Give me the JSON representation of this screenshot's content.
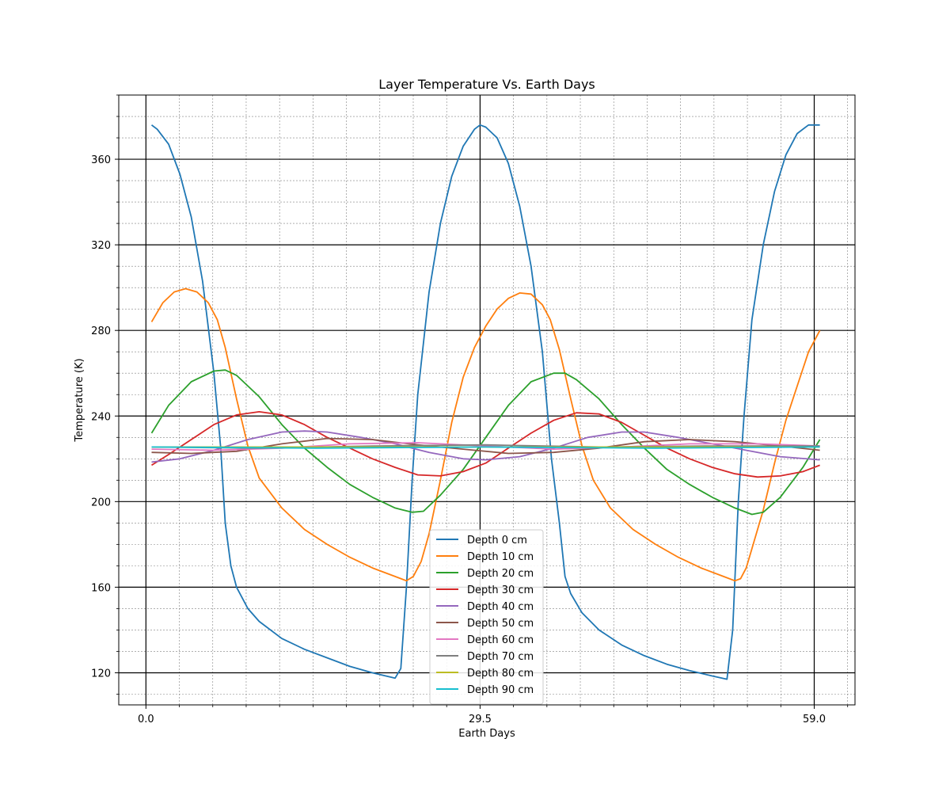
{
  "chart_data": {
    "type": "line",
    "title": "Layer Temperature Vs. Earth Days",
    "xlabel": "Earth Days",
    "ylabel": "Temperature (K)",
    "xlim": [
      -2.4,
      62.6
    ],
    "ylim": [
      105,
      390
    ],
    "x_ticks": [
      0.0,
      29.5,
      59.0
    ],
    "x_tick_labels": [
      "0.0",
      "29.5",
      "59.0"
    ],
    "y_ticks": [
      120,
      160,
      200,
      240,
      280,
      320,
      360
    ],
    "y_tick_labels": [
      "120",
      "160",
      "200",
      "240",
      "280",
      "320",
      "360"
    ],
    "grid": true,
    "minor_grid": true,
    "legend_position": "lower-center",
    "series": [
      {
        "name": "Depth 0 cm",
        "color": "#1f77b4",
        "points": [
          [
            0.5,
            376
          ],
          [
            1,
            374
          ],
          [
            2,
            367
          ],
          [
            3,
            353
          ],
          [
            4,
            333
          ],
          [
            5,
            303
          ],
          [
            6,
            260
          ],
          [
            6.6,
            225
          ],
          [
            7.0,
            190
          ],
          [
            7.5,
            170
          ],
          [
            8,
            160
          ],
          [
            9,
            150
          ],
          [
            10,
            144
          ],
          [
            12,
            136
          ],
          [
            14,
            131
          ],
          [
            16,
            127
          ],
          [
            18,
            123
          ],
          [
            20,
            120
          ],
          [
            22,
            117.5
          ],
          [
            22.5,
            122
          ],
          [
            23,
            160
          ],
          [
            23.5,
            210
          ],
          [
            24,
            250
          ],
          [
            25,
            298
          ],
          [
            26,
            330
          ],
          [
            27,
            352
          ],
          [
            28,
            366
          ],
          [
            29,
            374
          ],
          [
            29.5,
            376
          ],
          [
            30,
            375
          ],
          [
            31,
            370
          ],
          [
            32,
            358
          ],
          [
            33,
            338
          ],
          [
            34,
            310
          ],
          [
            35,
            270
          ],
          [
            35.8,
            220
          ],
          [
            36.5,
            190
          ],
          [
            37,
            165
          ],
          [
            37.5,
            157
          ],
          [
            38.5,
            148
          ],
          [
            40,
            140
          ],
          [
            42,
            133
          ],
          [
            44,
            128
          ],
          [
            46,
            124
          ],
          [
            48,
            121
          ],
          [
            50,
            118.5
          ],
          [
            51.3,
            117
          ],
          [
            51.8,
            140
          ],
          [
            52.3,
            200
          ],
          [
            52.8,
            240
          ],
          [
            53.5,
            285
          ],
          [
            54.5,
            320
          ],
          [
            55.5,
            345
          ],
          [
            56.5,
            362
          ],
          [
            57.5,
            372
          ],
          [
            58.5,
            376
          ],
          [
            59.5,
            376
          ]
        ]
      },
      {
        "name": "Depth 10 cm",
        "color": "#ff7f0e",
        "points": [
          [
            0.5,
            284
          ],
          [
            1.5,
            293
          ],
          [
            2.5,
            298
          ],
          [
            3.5,
            299.5
          ],
          [
            4.5,
            298
          ],
          [
            5.5,
            293
          ],
          [
            6.3,
            285
          ],
          [
            7,
            272
          ],
          [
            8,
            248
          ],
          [
            9,
            226
          ],
          [
            10,
            211
          ],
          [
            12,
            197
          ],
          [
            14,
            187
          ],
          [
            16,
            180
          ],
          [
            18,
            174
          ],
          [
            20,
            169
          ],
          [
            22,
            165
          ],
          [
            23,
            163
          ],
          [
            23.6,
            165
          ],
          [
            24.3,
            172
          ],
          [
            25,
            185
          ],
          [
            26,
            210
          ],
          [
            27,
            237
          ],
          [
            28,
            258
          ],
          [
            29,
            272
          ],
          [
            30,
            282
          ],
          [
            31,
            290
          ],
          [
            32,
            295
          ],
          [
            33,
            297.5
          ],
          [
            34,
            297
          ],
          [
            35,
            292
          ],
          [
            35.7,
            285
          ],
          [
            36.5,
            271
          ],
          [
            37.5,
            248
          ],
          [
            38.5,
            226
          ],
          [
            39.5,
            210
          ],
          [
            41,
            197
          ],
          [
            43,
            187
          ],
          [
            45,
            180
          ],
          [
            47,
            174
          ],
          [
            49,
            169
          ],
          [
            51,
            165
          ],
          [
            52,
            163
          ],
          [
            52.5,
            164
          ],
          [
            53,
            169
          ],
          [
            53.5,
            178
          ],
          [
            54.5,
            196
          ],
          [
            55.5,
            218
          ],
          [
            56.5,
            238
          ],
          [
            57.5,
            254
          ],
          [
            58.5,
            270
          ],
          [
            59.5,
            280
          ]
        ]
      },
      {
        "name": "Depth 20 cm",
        "color": "#2ca02c",
        "points": [
          [
            0.5,
            232
          ],
          [
            2,
            245
          ],
          [
            4,
            256
          ],
          [
            6,
            261
          ],
          [
            7,
            261.5
          ],
          [
            8,
            259
          ],
          [
            10,
            249
          ],
          [
            12,
            236
          ],
          [
            14,
            225
          ],
          [
            16,
            216
          ],
          [
            18,
            208
          ],
          [
            20,
            202
          ],
          [
            22,
            197
          ],
          [
            23.5,
            195
          ],
          [
            24.5,
            195.5
          ],
          [
            26,
            203
          ],
          [
            28,
            215
          ],
          [
            30,
            230
          ],
          [
            32,
            245
          ],
          [
            34,
            256
          ],
          [
            36,
            260
          ],
          [
            37,
            260
          ],
          [
            38,
            257
          ],
          [
            40,
            248
          ],
          [
            42,
            236
          ],
          [
            44,
            225
          ],
          [
            46,
            215
          ],
          [
            48,
            208
          ],
          [
            50,
            202
          ],
          [
            52,
            197
          ],
          [
            53.5,
            194
          ],
          [
            54.5,
            195
          ],
          [
            56,
            202
          ],
          [
            58,
            216
          ],
          [
            59.5,
            229
          ]
        ]
      },
      {
        "name": "Depth 30 cm",
        "color": "#d62728",
        "points": [
          [
            0.5,
            217
          ],
          [
            2,
            222
          ],
          [
            4,
            229
          ],
          [
            6,
            236
          ],
          [
            8,
            240.5
          ],
          [
            10,
            242
          ],
          [
            12,
            240.5
          ],
          [
            14,
            236
          ],
          [
            16,
            230
          ],
          [
            18,
            225
          ],
          [
            20,
            220
          ],
          [
            22,
            216
          ],
          [
            24,
            212.5
          ],
          [
            26,
            212
          ],
          [
            28,
            214
          ],
          [
            30,
            218
          ],
          [
            32,
            225
          ],
          [
            34,
            232
          ],
          [
            36,
            238
          ],
          [
            38,
            241.5
          ],
          [
            40,
            241
          ],
          [
            42,
            237
          ],
          [
            44,
            231
          ],
          [
            46,
            225
          ],
          [
            48,
            220
          ],
          [
            50,
            216
          ],
          [
            52,
            213
          ],
          [
            54,
            211.5
          ],
          [
            56,
            212
          ],
          [
            58,
            214
          ],
          [
            59.5,
            217
          ]
        ]
      },
      {
        "name": "Depth 40 cm",
        "color": "#9467bd",
        "points": [
          [
            0.5,
            218.5
          ],
          [
            3,
            220
          ],
          [
            6,
            224
          ],
          [
            9,
            229
          ],
          [
            12,
            232.5
          ],
          [
            14,
            233
          ],
          [
            16,
            232.5
          ],
          [
            19,
            230
          ],
          [
            22,
            227
          ],
          [
            25,
            223
          ],
          [
            28,
            220
          ],
          [
            30,
            219.5
          ],
          [
            33,
            221
          ],
          [
            36,
            225
          ],
          [
            39,
            230
          ],
          [
            42,
            232.5
          ],
          [
            44,
            232.5
          ],
          [
            47,
            230
          ],
          [
            50,
            227
          ],
          [
            53,
            224
          ],
          [
            56,
            221
          ],
          [
            59.5,
            219.5
          ]
        ]
      },
      {
        "name": "Depth 50 cm",
        "color": "#8c564b",
        "points": [
          [
            0.5,
            223
          ],
          [
            4,
            222.5
          ],
          [
            8,
            223.5
          ],
          [
            12,
            227
          ],
          [
            16,
            229.5
          ],
          [
            20,
            229
          ],
          [
            24,
            226.5
          ],
          [
            28,
            224.5
          ],
          [
            32,
            222.5
          ],
          [
            36,
            223
          ],
          [
            40,
            225
          ],
          [
            44,
            228
          ],
          [
            48,
            229
          ],
          [
            52,
            228
          ],
          [
            56,
            226
          ],
          [
            59.5,
            224
          ]
        ]
      },
      {
        "name": "Depth 60 cm",
        "color": "#e377c2",
        "points": [
          [
            0.5,
            224.5
          ],
          [
            6,
            224
          ],
          [
            12,
            225
          ],
          [
            18,
            227
          ],
          [
            24,
            227.5
          ],
          [
            30,
            226
          ],
          [
            36,
            224.5
          ],
          [
            42,
            225.5
          ],
          [
            48,
            227
          ],
          [
            54,
            227
          ],
          [
            59.5,
            226
          ]
        ]
      },
      {
        "name": "Depth 70 cm",
        "color": "#7f7f7f",
        "points": [
          [
            0.5,
            225.5
          ],
          [
            10,
            225
          ],
          [
            20,
            226
          ],
          [
            30,
            226.5
          ],
          [
            40,
            225.5
          ],
          [
            50,
            226
          ],
          [
            59.5,
            226
          ]
        ]
      },
      {
        "name": "Depth 80 cm",
        "color": "#bcbd22",
        "points": [
          [
            0.5,
            225.5
          ],
          [
            15,
            225.5
          ],
          [
            30,
            225.5
          ],
          [
            45,
            225.5
          ],
          [
            59.5,
            225.5
          ]
        ]
      },
      {
        "name": "Depth 90 cm",
        "color": "#17becf",
        "points": [
          [
            0.5,
            225.5
          ],
          [
            15,
            225
          ],
          [
            30,
            225.5
          ],
          [
            45,
            225
          ],
          [
            59.5,
            225.5
          ]
        ]
      }
    ]
  }
}
